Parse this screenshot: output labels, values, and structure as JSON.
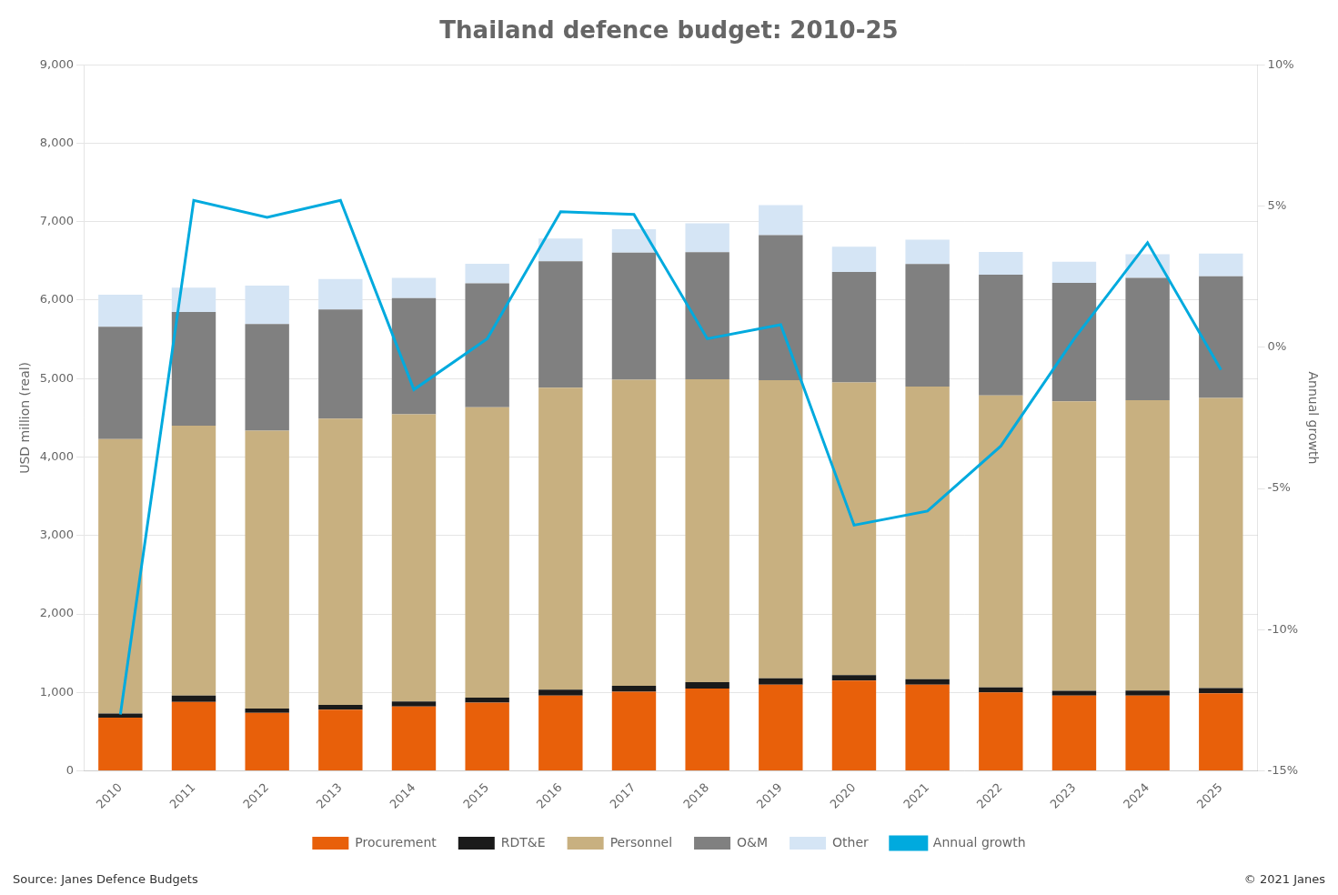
{
  "chart_data": {
    "type": "bar",
    "title": "Thailand defence budget: 2010-25",
    "ylabel": "USD million (real)",
    "y2label": "Annual growth",
    "stacked": true,
    "grid": true,
    "legend": "bottom",
    "categories": [
      "2010",
      "2011",
      "2012",
      "2013",
      "2014",
      "2015",
      "2016",
      "2017",
      "2018",
      "2019",
      "2020",
      "2021",
      "2022",
      "2023",
      "2024",
      "2025"
    ],
    "series": [
      {
        "name": "Procurement",
        "color": "#E8600A",
        "values": [
          680,
          880,
          740,
          780,
          820,
          870,
          960,
          1010,
          1050,
          1100,
          1150,
          1100,
          1000,
          960,
          960,
          990
        ]
      },
      {
        "name": "RDT&E",
        "color": "#1A1A1A",
        "values": [
          50,
          80,
          55,
          60,
          65,
          65,
          75,
          75,
          80,
          80,
          70,
          70,
          65,
          60,
          65,
          65
        ]
      },
      {
        "name": "Personnel",
        "color": "#C8B080",
        "values": [
          3500,
          3440,
          3540,
          3650,
          3660,
          3700,
          3850,
          3900,
          3860,
          3800,
          3730,
          3730,
          3720,
          3690,
          3700,
          3700
        ]
      },
      {
        "name": "O&M",
        "color": "#808080",
        "values": [
          1430,
          1450,
          1360,
          1390,
          1480,
          1580,
          1610,
          1620,
          1620,
          1850,
          1410,
          1560,
          1540,
          1510,
          1560,
          1550
        ]
      },
      {
        "name": "Other",
        "color": "#D5E5F5",
        "values": [
          410,
          310,
          490,
          390,
          260,
          250,
          290,
          300,
          370,
          380,
          320,
          310,
          290,
          270,
          300,
          290
        ]
      },
      {
        "name": "Annual growth",
        "type": "line",
        "axis": "y2",
        "color": "#00AADE",
        "values": [
          -13.0,
          5.2,
          4.6,
          5.2,
          -1.5,
          0.3,
          4.8,
          4.7,
          0.3,
          0.8,
          -6.3,
          -5.8,
          -3.5,
          0.3,
          3.7,
          -0.8
        ]
      }
    ],
    "ylim": [
      0,
      9000
    ],
    "yticks": [
      0,
      {
        "value": 1000,
        "label": "1,000"
      },
      {
        "value": 2000,
        "label": "2,000"
      },
      {
        "value": 3000,
        "label": "3,000"
      },
      {
        "value": 4000,
        "label": "4,000"
      },
      {
        "value": 5000,
        "label": "5,000"
      },
      {
        "value": 6000,
        "label": "6,000"
      },
      {
        "value": 7000,
        "label": "7,000"
      },
      {
        "value": 8000,
        "label": "8,000"
      },
      {
        "value": 9000,
        "label": "9,000"
      }
    ],
    "y2lim": [
      -15,
      10
    ],
    "y2ticks": [
      {
        "value": -15,
        "label": "-15%"
      },
      {
        "value": -10,
        "label": "-10%"
      },
      {
        "value": -5,
        "label": "-5%"
      },
      {
        "value": 0,
        "label": "0%"
      },
      {
        "value": 5,
        "label": "5%"
      },
      {
        "value": 10,
        "label": "10%"
      }
    ],
    "annotations": [
      "Source: Janes Defence Budgets",
      "© 2021 Janes"
    ]
  }
}
